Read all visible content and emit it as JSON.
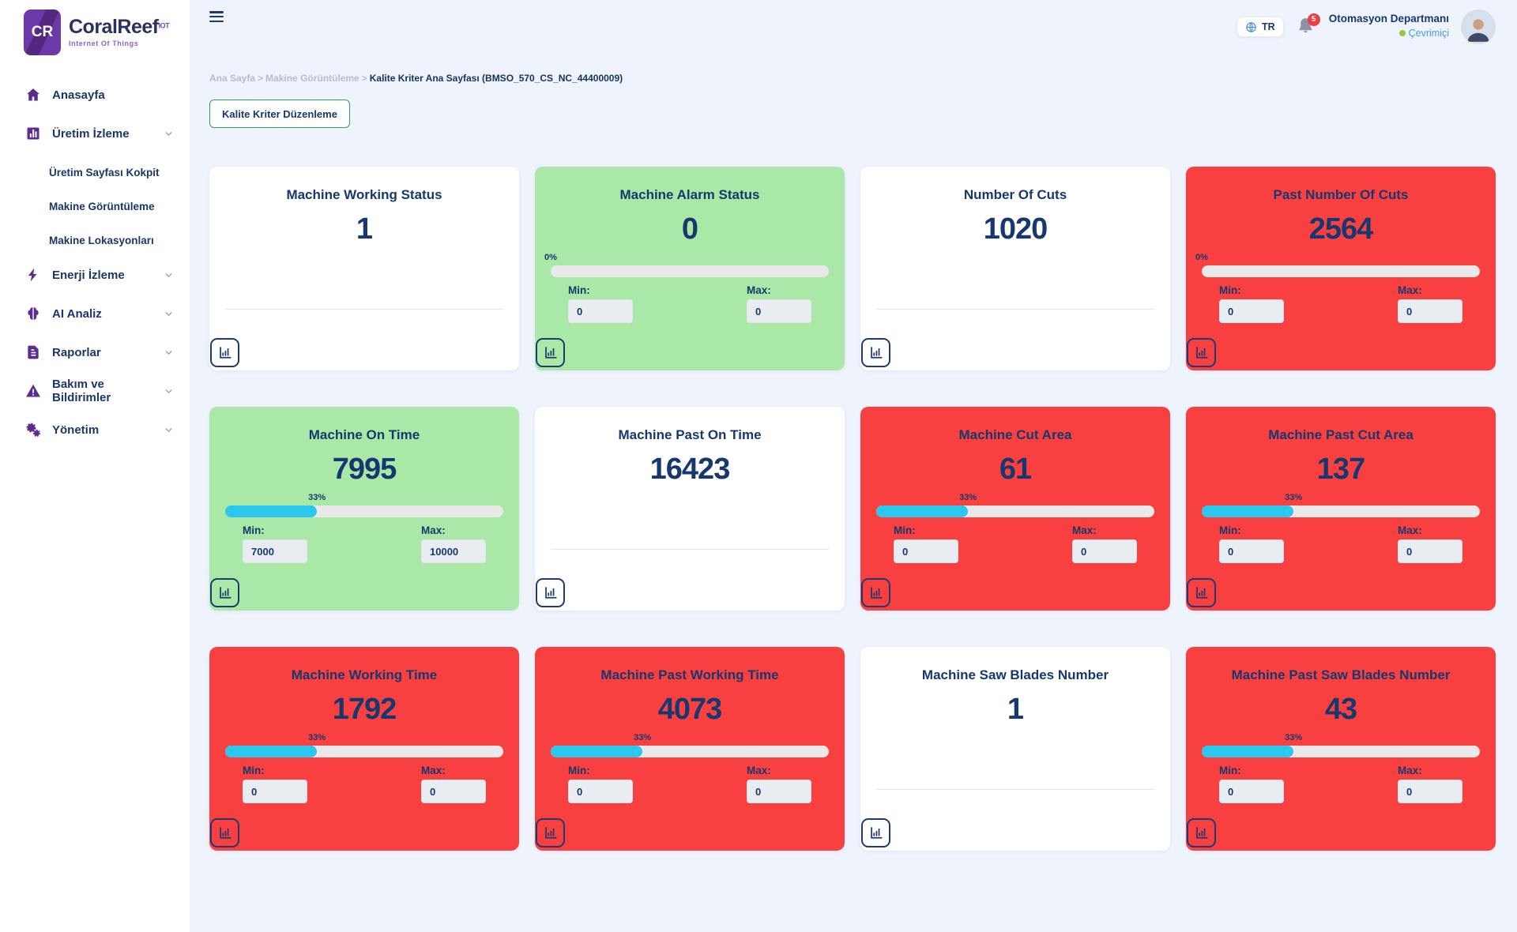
{
  "brand": {
    "initials": "CR",
    "name": "CoralReef",
    "superscript": "IOT",
    "tagline": "Internet Of Things"
  },
  "sidebar": {
    "items": [
      {
        "label": "Anasayfa",
        "icon": "home-icon",
        "expandable": false
      },
      {
        "label": "Üretim İzleme",
        "icon": "production-chart-icon",
        "expandable": true,
        "children": [
          "Üretim Sayfası Kokpit",
          "Makine Görüntüleme",
          "Makine Lokasyonları"
        ]
      },
      {
        "label": "Enerji İzleme",
        "icon": "bolt-icon",
        "expandable": true
      },
      {
        "label": "AI Analiz",
        "icon": "brain-icon",
        "expandable": true
      },
      {
        "label": "Raporlar",
        "icon": "report-icon",
        "expandable": true
      },
      {
        "label": "Bakım ve Bildirimler",
        "icon": "warning-icon",
        "expandable": true
      },
      {
        "label": "Yönetim",
        "icon": "gears-icon",
        "expandable": true
      }
    ]
  },
  "header": {
    "language": "TR",
    "language_icon": "globe-icon",
    "notification_icon": "bell-icon",
    "notification_count": "5",
    "user": {
      "name": "Otomasyon Departmanı",
      "status": "Çevrimiçi"
    }
  },
  "breadcrumb": {
    "items": [
      "Ana Sayfa",
      "Makine Görüntüleme"
    ],
    "separator": ">",
    "current": "Kalite Kriter Ana Sayfası (BMSO_570_CS_NC_44400009)"
  },
  "actions": {
    "edit_button": "Kalite Kriter Düzenleme"
  },
  "labels": {
    "min": "Min:",
    "max": "Max:",
    "card_action_icon": "bar-chart-icon"
  },
  "cards": [
    {
      "title": "Machine Working Status",
      "value": "1",
      "variant": "white",
      "type": "plain"
    },
    {
      "title": "Machine Alarm Status",
      "value": "0",
      "variant": "green",
      "type": "gauge",
      "percent": "0%",
      "pct": 0,
      "min": "0",
      "max": "0"
    },
    {
      "title": "Number Of Cuts",
      "value": "1020",
      "variant": "white",
      "type": "plain"
    },
    {
      "title": "Past Number Of Cuts",
      "value": "2564",
      "variant": "red",
      "type": "gauge",
      "percent": "0%",
      "pct": 0,
      "min": "0",
      "max": "0"
    },
    {
      "title": "Machine On Time",
      "value": "7995",
      "variant": "green",
      "type": "gauge",
      "percent": "33%",
      "pct": 33,
      "min": "7000",
      "max": "10000"
    },
    {
      "title": "Machine Past On Time",
      "value": "16423",
      "variant": "white",
      "type": "plain"
    },
    {
      "title": "Machine Cut Area",
      "value": "61",
      "variant": "red",
      "type": "gauge",
      "percent": "33%",
      "pct": 33,
      "min": "0",
      "max": "0"
    },
    {
      "title": "Machine Past Cut Area",
      "value": "137",
      "variant": "red",
      "type": "gauge",
      "percent": "33%",
      "pct": 33,
      "min": "0",
      "max": "0"
    },
    {
      "title": "Machine Working Time",
      "value": "1792",
      "variant": "red",
      "type": "gauge",
      "percent": "33%",
      "pct": 33,
      "min": "0",
      "max": "0"
    },
    {
      "title": "Machine Past Working Time",
      "value": "4073",
      "variant": "red",
      "type": "gauge",
      "percent": "33%",
      "pct": 33,
      "min": "0",
      "max": "0"
    },
    {
      "title": "Machine Saw Blades Number",
      "value": "1",
      "variant": "white",
      "type": "plain"
    },
    {
      "title": "Machine Past Saw Blades Number",
      "value": "43",
      "variant": "red",
      "type": "gauge",
      "percent": "33%",
      "pct": 33,
      "min": "0",
      "max": "0"
    }
  ],
  "colors": {
    "card_red": "#f94040",
    "card_green": "#a9e8a6",
    "progress_fill": "#2bc7ee",
    "progress_track": "#e9e9e9",
    "navy_text": "#16386e",
    "sidebar_purple": "#5c2d91",
    "badge_red": "#f03e3e",
    "status_green": "#97c93d",
    "button_border_green": "#2aa35c",
    "page_background": "#eef3fc"
  }
}
